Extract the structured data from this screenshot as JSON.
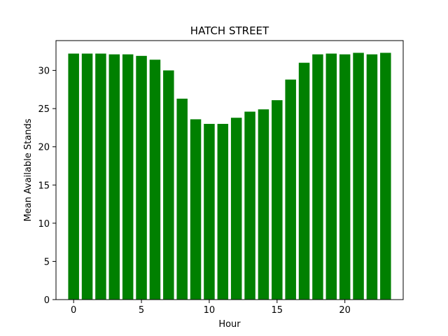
{
  "chart_data": {
    "type": "bar",
    "title": "HATCH STREET",
    "xlabel": "Hour",
    "ylabel": "Mean Available Stands",
    "categories": [
      0,
      1,
      2,
      3,
      4,
      5,
      6,
      7,
      8,
      9,
      10,
      11,
      12,
      13,
      14,
      15,
      16,
      17,
      18,
      19,
      20,
      21,
      22,
      23
    ],
    "values": [
      32.2,
      32.2,
      32.2,
      32.1,
      32.1,
      31.9,
      31.4,
      30.0,
      26.3,
      23.6,
      23.0,
      23.0,
      23.8,
      24.6,
      24.9,
      26.1,
      28.8,
      31.0,
      32.1,
      32.2,
      32.1,
      32.3,
      32.1,
      32.3
    ],
    "xlim": [
      -1.3,
      24.3
    ],
    "ylim": [
      0,
      33.9
    ],
    "xticks": [
      0,
      5,
      10,
      15,
      20
    ],
    "yticks": [
      0,
      5,
      10,
      15,
      20,
      25,
      30
    ],
    "bar_color": "#008000",
    "grid": false,
    "legend": "none"
  }
}
